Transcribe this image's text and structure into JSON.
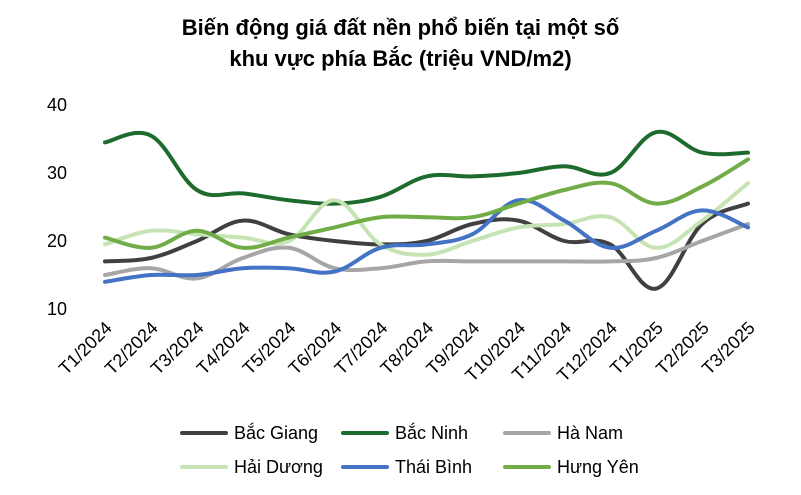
{
  "chart_data": {
    "type": "line",
    "title_line1": "Biến động giá đất nền phổ biến tại một số",
    "title_line2": "khu vực phía Bắc (triệu VND/m2)",
    "categories": [
      "T1/2024",
      "T2/2024",
      "T3/2024",
      "T4/2024",
      "T5/2024",
      "T6/2024",
      "T7/2024",
      "T8/2024",
      "T9/2024",
      "T10/2024",
      "T11/2024",
      "T12/2024",
      "T1/2025",
      "T2/2025",
      "T3/2025"
    ],
    "ylim": [
      10,
      40
    ],
    "yticks": [
      "10",
      "20",
      "30",
      "40"
    ],
    "grid": false,
    "legend_position": "bottom",
    "series": [
      {
        "name": "Bắc Giang",
        "color": "#404040",
        "values": [
          17,
          17.5,
          20,
          23,
          21,
          20,
          19.5,
          20,
          22.5,
          23,
          20,
          19.5,
          13,
          22.5,
          25.5
        ]
      },
      {
        "name": "Bắc Ninh",
        "color": "#1e6b2e",
        "values": [
          34.5,
          35.5,
          27.5,
          27,
          26,
          25.5,
          26.5,
          29.5,
          29.5,
          30,
          31,
          30,
          36,
          33,
          33
        ]
      },
      {
        "name": "Hà Nam",
        "color": "#a6a6a6",
        "values": [
          15,
          16,
          14.5,
          17.5,
          19,
          16,
          16,
          17,
          17,
          17,
          17,
          17,
          17.5,
          20,
          22.5
        ]
      },
      {
        "name": "Hải Dương",
        "color": "#c6e4b3",
        "values": [
          19.5,
          21.5,
          21,
          20.5,
          20,
          26,
          19.5,
          18,
          20,
          22,
          22.5,
          23.5,
          19,
          23,
          28.5
        ]
      },
      {
        "name": "Thái Bình",
        "color": "#4472c4",
        "values": [
          14,
          15,
          15,
          16,
          16,
          15.5,
          19,
          19.5,
          21,
          26,
          23,
          19,
          21.5,
          24.5,
          22
        ]
      },
      {
        "name": "Hưng Yên",
        "color": "#70ad47",
        "values": [
          20.5,
          19,
          21.5,
          19,
          20.5,
          22,
          23.5,
          23.5,
          23.5,
          25.5,
          27.5,
          28.5,
          25.5,
          28,
          32
        ]
      }
    ]
  }
}
